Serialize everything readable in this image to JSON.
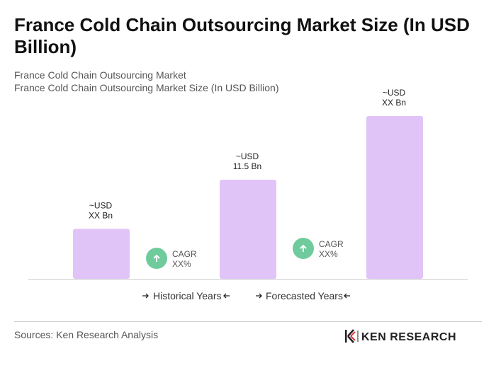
{
  "chart_data": {
    "type": "bar",
    "title": [
      "France Cold Chain Outsourcing Market Size (In USD",
      "Billion)"
    ],
    "subtitle": [
      "France Cold Chain Outsourcing Market",
      "France Cold Chain Outsourcing Market Size (In USD Billion)"
    ],
    "categories": [
      null,
      null,
      null
    ],
    "values": [
      5.8,
      11.5,
      18.9
    ],
    "value_labels": [
      [
        "~USD",
        "XX Bn"
      ],
      [
        "~USD",
        "11.5 Bn"
      ],
      [
        "~USD",
        "XX Bn"
      ]
    ],
    "color": "#e0c4f8",
    "annotations": [
      {
        "title": "CAGR",
        "value": "XX%"
      },
      {
        "title": "CAGR",
        "value": "XX%"
      }
    ],
    "annotation_color": "#6fcb9c",
    "periods": [
      "Historical Years",
      "Forecasted Years"
    ],
    "source": "Sources: Ken Research Analysis",
    "logo": "KEN RESEARCH"
  }
}
